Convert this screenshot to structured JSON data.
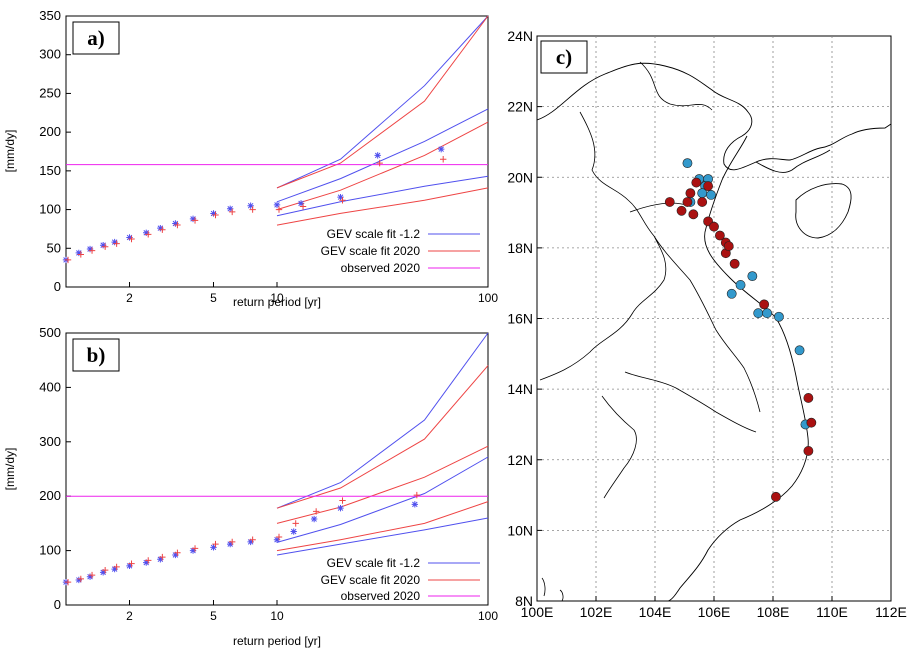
{
  "figure": {
    "panels": [
      "a)",
      "b)",
      "c)"
    ]
  },
  "chart_data": [
    {
      "type": "line",
      "panel": "a)",
      "xlabel": "return period [yr]",
      "ylabel": "[mm/dy]",
      "x_scale": "log",
      "xlim": [
        1,
        100
      ],
      "ylim": [
        0,
        350
      ],
      "x_ticks": [
        2,
        5,
        10,
        100
      ],
      "x_tick_labels": [
        "2",
        "5",
        "10",
        "100"
      ],
      "y_ticks": [
        0,
        50,
        100,
        150,
        200,
        250,
        300,
        350
      ],
      "grid": false,
      "legend": "bottom-right",
      "colors": {
        "blue": "#5050ee",
        "red": "#ee4444",
        "magenta": "#ee22ee"
      },
      "series": [
        {
          "name": "GEV scale fit -1.2",
          "style": "line",
          "color": "blue",
          "bands": [
            {
              "x": [
                10,
                20,
                50,
                100
              ],
              "y": [
                128,
                165,
                260,
                350
              ]
            },
            {
              "x": [
                10,
                20,
                50,
                100
              ],
              "y": [
                110,
                140,
                188,
                230
              ]
            },
            {
              "x": [
                10,
                20,
                50,
                100
              ],
              "y": [
                92,
                110,
                130,
                143
              ]
            }
          ]
        },
        {
          "name": "GEV scale fit 2020",
          "style": "line",
          "color": "red",
          "bands": [
            {
              "x": [
                10,
                20,
                50,
                100
              ],
              "y": [
                128,
                160,
                240,
                350
              ]
            },
            {
              "x": [
                10,
                20,
                50,
                100
              ],
              "y": [
                100,
                125,
                170,
                213
              ]
            },
            {
              "x": [
                10,
                20,
                50,
                100
              ],
              "y": [
                80,
                95,
                112,
                128
              ]
            }
          ]
        },
        {
          "name": "observed 2020",
          "style": "hline",
          "color": "magenta",
          "y": 158
        },
        {
          "style": "star",
          "color": "blue",
          "x": [
            1.0,
            1.15,
            1.3,
            1.5,
            1.7,
            2.0,
            2.4,
            2.8,
            3.3,
            4.0,
            5.0,
            6.0,
            7.5,
            10,
            13,
            20,
            30,
            60
          ],
          "y": [
            35,
            44,
            49,
            54,
            58,
            64,
            70,
            76,
            82,
            88,
            95,
            101,
            105,
            106,
            108,
            116,
            170,
            178
          ]
        },
        {
          "style": "plus",
          "color": "red",
          "x": [
            1.0,
            1.15,
            1.3,
            1.5,
            1.7,
            2.0,
            2.4,
            2.8,
            3.3,
            4.0,
            5.0,
            6.0,
            7.5,
            10,
            13,
            20,
            30,
            60
          ],
          "y": [
            35,
            42,
            47,
            52,
            56,
            62,
            68,
            74,
            80,
            86,
            93,
            97,
            100,
            100,
            104,
            112,
            160,
            165
          ]
        }
      ]
    },
    {
      "type": "line",
      "panel": "b)",
      "xlabel": "return period [yr]",
      "ylabel": "[mm/dy]",
      "x_scale": "log",
      "xlim": [
        1,
        100
      ],
      "ylim": [
        0,
        500
      ],
      "x_ticks": [
        2,
        5,
        10,
        100
      ],
      "x_tick_labels": [
        "2",
        "5",
        "10",
        "100"
      ],
      "y_ticks": [
        0,
        100,
        200,
        300,
        400,
        500
      ],
      "grid": false,
      "legend": "bottom-right",
      "colors": {
        "blue": "#5050ee",
        "red": "#ee4444",
        "magenta": "#ee22ee"
      },
      "series": [
        {
          "name": "GEV scale fit -1.2",
          "style": "line",
          "color": "blue",
          "bands": [
            {
              "x": [
                10,
                20,
                50,
                100
              ],
              "y": [
                178,
                225,
                340,
                500
              ]
            },
            {
              "x": [
                10,
                20,
                50,
                100
              ],
              "y": [
                115,
                148,
                205,
                272
              ]
            },
            {
              "x": [
                10,
                20,
                50,
                100
              ],
              "y": [
                92,
                112,
                138,
                160
              ]
            }
          ]
        },
        {
          "name": "GEV scale fit 2020",
          "style": "line",
          "color": "red",
          "bands": [
            {
              "x": [
                10,
                20,
                50,
                100
              ],
              "y": [
                178,
                215,
                305,
                440
              ]
            },
            {
              "x": [
                10,
                20,
                50,
                100
              ],
              "y": [
                150,
                180,
                235,
                292
              ]
            },
            {
              "x": [
                10,
                20,
                50,
                100
              ],
              "y": [
                100,
                120,
                150,
                190
              ]
            }
          ]
        },
        {
          "name": "observed 2020",
          "style": "hline",
          "color": "magenta",
          "y": 200
        },
        {
          "style": "star",
          "color": "blue",
          "x": [
            1.0,
            1.15,
            1.3,
            1.5,
            1.7,
            2.0,
            2.4,
            2.8,
            3.3,
            4.0,
            5.0,
            6.0,
            7.5,
            10,
            12,
            15,
            20,
            45
          ],
          "y": [
            42,
            46,
            52,
            60,
            66,
            72,
            78,
            84,
            92,
            100,
            106,
            112,
            116,
            120,
            135,
            158,
            178,
            185
          ]
        },
        {
          "style": "plus",
          "color": "red",
          "x": [
            1.0,
            1.15,
            1.3,
            1.5,
            1.7,
            2.0,
            2.4,
            2.8,
            3.3,
            4.0,
            5.0,
            6.0,
            7.5,
            10,
            12,
            15,
            20,
            45
          ],
          "y": [
            42,
            48,
            55,
            64,
            70,
            76,
            82,
            88,
            96,
            104,
            112,
            116,
            120,
            125,
            150,
            172,
            192,
            202
          ]
        }
      ]
    },
    {
      "type": "scatter",
      "panel": "c)",
      "projection": "lon-lat",
      "xlim": [
        100,
        112
      ],
      "ylim": [
        8,
        24
      ],
      "x_ticks": [
        100,
        102,
        104,
        106,
        108,
        110,
        112
      ],
      "x_tick_labels": [
        "100E",
        "102E",
        "104E",
        "106E",
        "108E",
        "110E",
        "112E"
      ],
      "y_ticks": [
        8,
        10,
        12,
        14,
        16,
        18,
        20,
        22,
        24
      ],
      "y_tick_labels": [
        "8N",
        "10N",
        "12N",
        "14N",
        "16N",
        "18N",
        "20N",
        "22N",
        "24N"
      ],
      "grid": true,
      "colors": {
        "red": "#aa1111",
        "blue": "#3399cc"
      },
      "series": [
        {
          "color": "blue",
          "lon": [
            105.1,
            105.5,
            105.8,
            105.2,
            105.7,
            105.6,
            105.9,
            107.3,
            107.5,
            106.6,
            106.9,
            107.8,
            108.2,
            108.9,
            109.1
          ],
          "lat": [
            20.4,
            19.95,
            19.95,
            19.3,
            19.75,
            19.55,
            19.5,
            17.2,
            16.15,
            16.7,
            16.95,
            16.15,
            16.05,
            15.1,
            13.0
          ]
        },
        {
          "color": "red",
          "lon": [
            104.5,
            104.9,
            105.2,
            105.1,
            105.3,
            105.6,
            105.4,
            105.8,
            105.8,
            106.0,
            106.2,
            106.4,
            106.4,
            106.7,
            106.5,
            107.7,
            109.2,
            109.3,
            109.2,
            108.1
          ],
          "lat": [
            19.3,
            19.05,
            19.55,
            19.3,
            18.95,
            19.3,
            19.85,
            19.75,
            18.75,
            18.6,
            18.35,
            18.15,
            17.85,
            17.55,
            18.05,
            16.4,
            13.75,
            13.05,
            12.25,
            10.95
          ]
        }
      ]
    }
  ]
}
